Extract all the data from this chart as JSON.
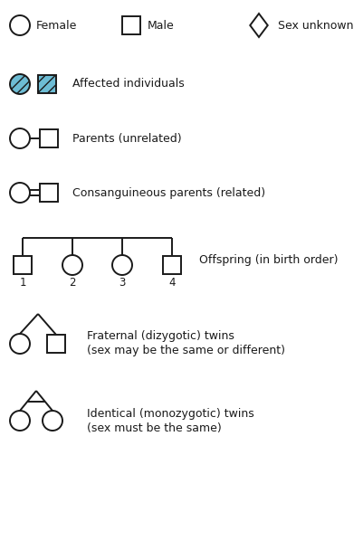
{
  "bg_color": "#ffffff",
  "line_color": "#1a1a1a",
  "affected_fill": "#6dbcd4",
  "hatch_pattern": "///",
  "text_color": "#1a1a1a",
  "labels": {
    "female": "Female",
    "male": "Male",
    "sex_unknown": "Sex unknown",
    "affected": "Affected individuals",
    "parents_unrelated": "Parents (unrelated)",
    "parents_related": "Consanguineous parents (related)",
    "offspring": "Offspring (in birth order)",
    "fraternal_line1": "Fraternal (dizygotic) twins",
    "fraternal_line2": "(sex may be the same or different)",
    "identical_line1": "Identical (monozygotic) twins",
    "identical_line2": "(sex must be the same)"
  },
  "offspring_numbers": [
    "1",
    "2",
    "3",
    "4"
  ],
  "symbol_r": 11,
  "symbol_half": 10
}
